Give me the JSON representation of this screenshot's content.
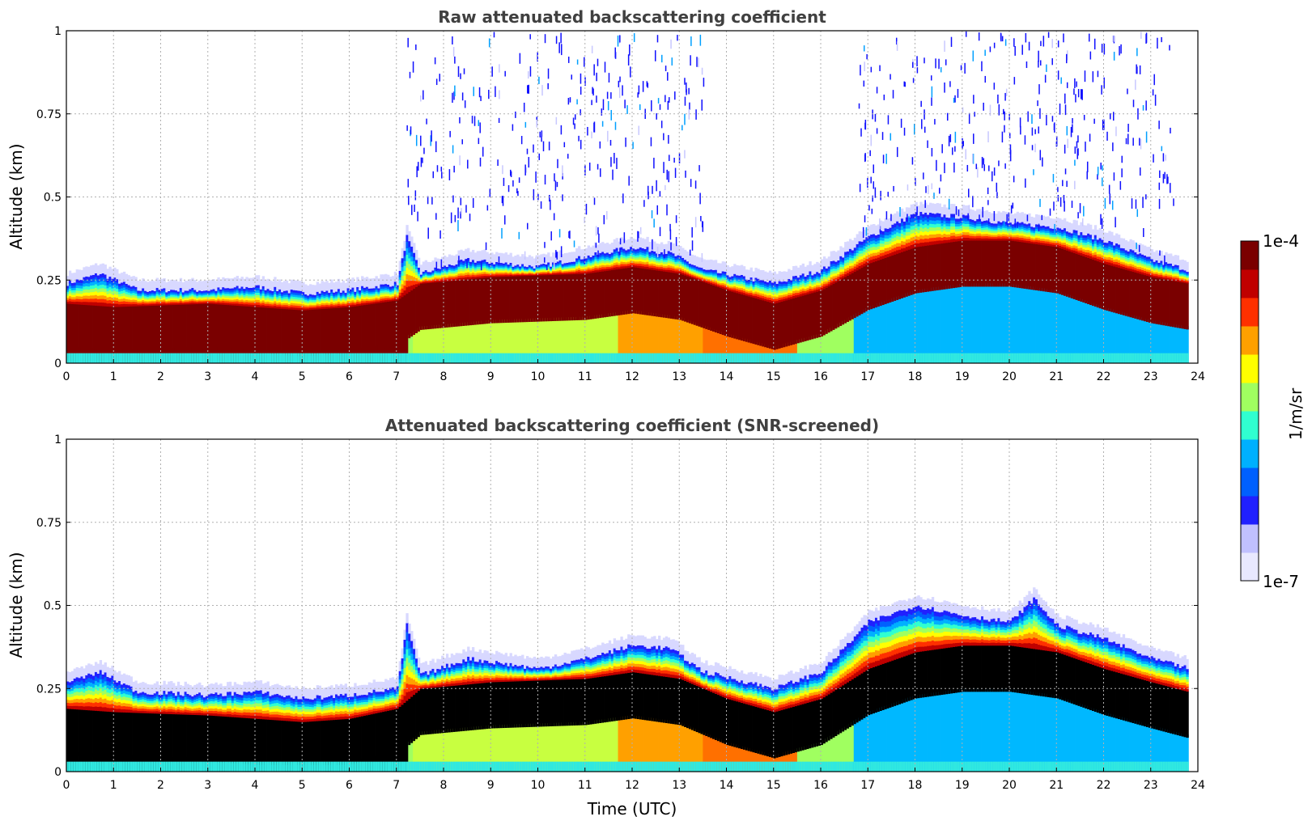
{
  "chart_data": [
    {
      "type": "heatmap",
      "title": "Raw attenuated backscattering coefficient",
      "xlabel": "",
      "ylabel": "Altitude (km)",
      "xlim": [
        0,
        24
      ],
      "ylim": [
        0,
        1
      ],
      "xticks": [
        "0",
        "1",
        "2",
        "3",
        "4",
        "5",
        "6",
        "7",
        "8",
        "9",
        "10",
        "11",
        "12",
        "13",
        "14",
        "15",
        "16",
        "17",
        "18",
        "19",
        "20",
        "21",
        "22",
        "23",
        "24"
      ],
      "yticks": [
        "0",
        "0.25",
        "0.5",
        "0.75",
        "1"
      ],
      "grid": true,
      "data_end_hour": 23.8,
      "layer_top_km": [
        [
          0,
          0.24
        ],
        [
          0.7,
          0.27
        ],
        [
          1.5,
          0.22
        ],
        [
          3,
          0.22
        ],
        [
          4,
          0.23
        ],
        [
          5,
          0.21
        ],
        [
          6,
          0.22
        ],
        [
          7,
          0.24
        ],
        [
          7.2,
          0.38
        ],
        [
          7.5,
          0.27
        ],
        [
          8.5,
          0.31
        ],
        [
          10,
          0.29
        ],
        [
          11,
          0.32
        ],
        [
          12,
          0.35
        ],
        [
          12.8,
          0.33
        ],
        [
          13.5,
          0.28
        ],
        [
          15,
          0.24
        ],
        [
          16,
          0.28
        ],
        [
          17,
          0.38
        ],
        [
          18,
          0.45
        ],
        [
          19,
          0.44
        ],
        [
          20,
          0.42
        ],
        [
          21,
          0.41
        ],
        [
          22,
          0.37
        ],
        [
          23,
          0.31
        ],
        [
          23.8,
          0.28
        ]
      ],
      "layer_core_km": [
        [
          0,
          0.11
        ],
        [
          1,
          0.1
        ],
        [
          3,
          0.11
        ],
        [
          5,
          0.09
        ],
        [
          6,
          0.1
        ],
        [
          7,
          0.12
        ],
        [
          7.5,
          0.17
        ],
        [
          9,
          0.19
        ],
        [
          11,
          0.2
        ],
        [
          12,
          0.22
        ],
        [
          13,
          0.2
        ],
        [
          14,
          0.15
        ],
        [
          15,
          0.11
        ],
        [
          16,
          0.15
        ],
        [
          17,
          0.23
        ],
        [
          18,
          0.28
        ],
        [
          19,
          0.3
        ],
        [
          20,
          0.3
        ],
        [
          21,
          0.28
        ],
        [
          22,
          0.23
        ],
        [
          23,
          0.19
        ],
        [
          23.8,
          0.17
        ]
      ],
      "noise_above": [
        [
          7.2,
          13.6
        ],
        [
          16.8,
          23.5
        ]
      ]
    },
    {
      "type": "heatmap",
      "title": "Attenuated backscattering coefficient (SNR-screened)",
      "xlabel": "Time (UTC)",
      "ylabel": "Altitude (km)",
      "xlim": [
        0,
        24
      ],
      "ylim": [
        0,
        1
      ],
      "xticks": [
        "0",
        "1",
        "2",
        "3",
        "4",
        "5",
        "6",
        "7",
        "8",
        "9",
        "10",
        "11",
        "12",
        "13",
        "14",
        "15",
        "16",
        "17",
        "18",
        "19",
        "20",
        "21",
        "22",
        "23",
        "24"
      ],
      "yticks": [
        "0",
        "0.25",
        "0.5",
        "0.75",
        "1"
      ],
      "grid": true,
      "data_end_hour": 23.8,
      "layer_top_km": [
        [
          0,
          0.27
        ],
        [
          0.7,
          0.3
        ],
        [
          1.5,
          0.24
        ],
        [
          3,
          0.23
        ],
        [
          4,
          0.24
        ],
        [
          5,
          0.22
        ],
        [
          6,
          0.23
        ],
        [
          7,
          0.25
        ],
        [
          7.2,
          0.44
        ],
        [
          7.5,
          0.29
        ],
        [
          8.5,
          0.34
        ],
        [
          10,
          0.31
        ],
        [
          11,
          0.34
        ],
        [
          12,
          0.38
        ],
        [
          12.8,
          0.37
        ],
        [
          13.5,
          0.3
        ],
        [
          15,
          0.25
        ],
        [
          16,
          0.3
        ],
        [
          17,
          0.45
        ],
        [
          18,
          0.5
        ],
        [
          19,
          0.47
        ],
        [
          20,
          0.45
        ],
        [
          20.5,
          0.52
        ],
        [
          21,
          0.44
        ],
        [
          22,
          0.4
        ],
        [
          23,
          0.34
        ],
        [
          23.8,
          0.31
        ]
      ],
      "layer_core_km": [
        [
          0,
          0.12
        ],
        [
          1,
          0.11
        ],
        [
          3,
          0.1
        ],
        [
          5,
          0.08
        ],
        [
          6,
          0.09
        ],
        [
          7,
          0.12
        ],
        [
          7.5,
          0.18
        ],
        [
          9,
          0.2
        ],
        [
          11,
          0.21
        ],
        [
          12,
          0.23
        ],
        [
          13,
          0.21
        ],
        [
          14,
          0.15
        ],
        [
          15,
          0.11
        ],
        [
          16,
          0.15
        ],
        [
          17,
          0.24
        ],
        [
          18,
          0.29
        ],
        [
          19,
          0.31
        ],
        [
          20,
          0.31
        ],
        [
          21,
          0.29
        ],
        [
          22,
          0.24
        ],
        [
          23,
          0.2
        ],
        [
          23.8,
          0.17
        ]
      ]
    }
  ],
  "colorbar": {
    "label": "1/m/sr",
    "max_label": "1e-4",
    "min_label": "1e-7",
    "scale": "log",
    "range": [
      1e-07,
      0.0001
    ],
    "colormap": [
      "#e8e8ff",
      "#c0c0ff",
      "#2020ff",
      "#0060ff",
      "#00b0ff",
      "#30ffd0",
      "#a0ff60",
      "#ffff00",
      "#ffa000",
      "#ff3000",
      "#c00000",
      "#7a0000"
    ]
  }
}
